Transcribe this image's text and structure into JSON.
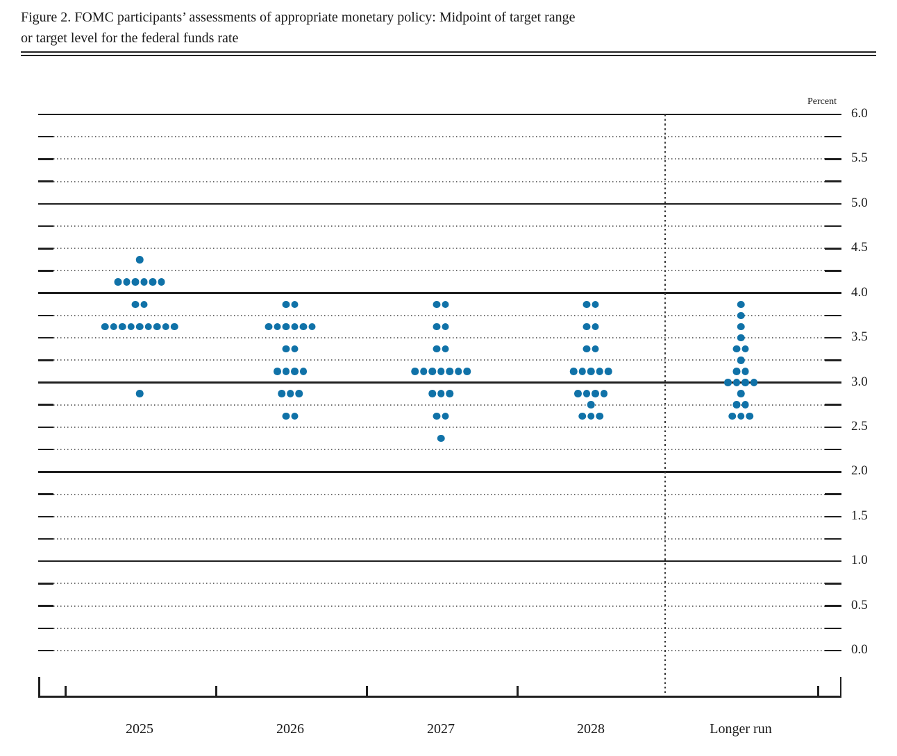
{
  "figure": {
    "title_line1": "Figure 2. FOMC participants’ assessments of appropriate monetary policy: Midpoint of target range",
    "title_line2": "or target level for the federal funds rate"
  },
  "chart_data": {
    "type": "scatter",
    "variant": "fomc-dot-plot",
    "title": "Figure 2. FOMC participants’ assessments of appropriate monetary policy: Midpoint of target range or target level for the federal funds rate",
    "unit_label": "Percent",
    "ylim": [
      0.0,
      6.0
    ],
    "grid_step": 0.25,
    "label_step": 0.5,
    "grid_on": true,
    "solid_gridline_values": [
      1.0,
      2.0,
      3.0,
      4.0,
      5.0,
      6.0
    ],
    "y_ticks": [
      {
        "value": 6.0,
        "label": "6.0"
      },
      {
        "value": 5.5,
        "label": "5.5"
      },
      {
        "value": 5.0,
        "label": "5.0"
      },
      {
        "value": 4.5,
        "label": "4.5"
      },
      {
        "value": 4.0,
        "label": "4.0"
      },
      {
        "value": 3.5,
        "label": "3.5"
      },
      {
        "value": 3.0,
        "label": "3.0"
      },
      {
        "value": 2.5,
        "label": "2.5"
      },
      {
        "value": 2.0,
        "label": "2.0"
      },
      {
        "value": 1.5,
        "label": "1.5"
      },
      {
        "value": 1.0,
        "label": "1.0"
      },
      {
        "value": 0.5,
        "label": "0.5"
      },
      {
        "value": 0.0,
        "label": "0.0"
      }
    ],
    "categories": [
      "2025",
      "2026",
      "2027",
      "2028",
      "Longer run"
    ],
    "separator": {
      "after_category": "2028",
      "style": "dashed-vertical-line"
    },
    "dot_color": "#1072a8",
    "series": [
      {
        "category": "2025",
        "dots": [
          {
            "rate": 4.375,
            "count": 1
          },
          {
            "rate": 4.125,
            "count": 6
          },
          {
            "rate": 3.875,
            "count": 2
          },
          {
            "rate": 3.625,
            "count": 9
          },
          {
            "rate": 2.875,
            "count": 1
          }
        ]
      },
      {
        "category": "2026",
        "dots": [
          {
            "rate": 3.875,
            "count": 2
          },
          {
            "rate": 3.625,
            "count": 6
          },
          {
            "rate": 3.375,
            "count": 2
          },
          {
            "rate": 3.125,
            "count": 4
          },
          {
            "rate": 2.875,
            "count": 3
          },
          {
            "rate": 2.625,
            "count": 2
          }
        ]
      },
      {
        "category": "2027",
        "dots": [
          {
            "rate": 3.875,
            "count": 2
          },
          {
            "rate": 3.625,
            "count": 2
          },
          {
            "rate": 3.375,
            "count": 2
          },
          {
            "rate": 3.125,
            "count": 7
          },
          {
            "rate": 2.875,
            "count": 3
          },
          {
            "rate": 2.625,
            "count": 2
          },
          {
            "rate": 2.375,
            "count": 1
          }
        ]
      },
      {
        "category": "2028",
        "dots": [
          {
            "rate": 3.875,
            "count": 2
          },
          {
            "rate": 3.625,
            "count": 2
          },
          {
            "rate": 3.375,
            "count": 2
          },
          {
            "rate": 3.125,
            "count": 5
          },
          {
            "rate": 2.875,
            "count": 4
          },
          {
            "rate": 2.75,
            "count": 1
          },
          {
            "rate": 2.625,
            "count": 3
          }
        ]
      },
      {
        "category": "Longer run",
        "dots": [
          {
            "rate": 3.875,
            "count": 1
          },
          {
            "rate": 3.75,
            "count": 1
          },
          {
            "rate": 3.625,
            "count": 1
          },
          {
            "rate": 3.5,
            "count": 1
          },
          {
            "rate": 3.375,
            "count": 2
          },
          {
            "rate": 3.25,
            "count": 1
          },
          {
            "rate": 3.125,
            "count": 2
          },
          {
            "rate": 3.0,
            "count": 4
          },
          {
            "rate": 2.875,
            "count": 1
          },
          {
            "rate": 2.75,
            "count": 2
          },
          {
            "rate": 2.625,
            "count": 3
          }
        ]
      }
    ]
  }
}
